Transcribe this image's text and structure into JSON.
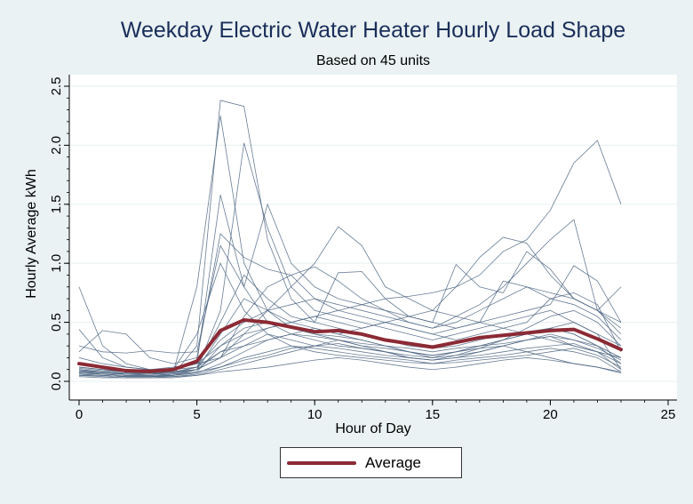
{
  "chart_data": {
    "type": "line",
    "title": "Weekday Electric Water Heater Hourly Load Shape",
    "subtitle": "Based on 45 units",
    "xlabel": "Hour of Day",
    "ylabel": "Hourly Average kWh",
    "xlim": [
      0,
      25
    ],
    "ylim": [
      0,
      2.5
    ],
    "xticks": [
      "0",
      "5",
      "10",
      "15",
      "20",
      "25"
    ],
    "yticks": [
      "0.0",
      "0.5",
      "1.0",
      "1.5",
      "2.0",
      "2.5"
    ],
    "grid": true,
    "legend": "bottom",
    "x": [
      0,
      1,
      2,
      3,
      4,
      5,
      6,
      7,
      8,
      9,
      10,
      11,
      12,
      13,
      14,
      15,
      16,
      17,
      18,
      19,
      20,
      21,
      22,
      23
    ],
    "average": {
      "name": "Average",
      "color": "#8b2a35",
      "values": [
        0.15,
        0.12,
        0.09,
        0.085,
        0.1,
        0.17,
        0.43,
        0.52,
        0.5,
        0.46,
        0.42,
        0.43,
        0.4,
        0.35,
        0.32,
        0.29,
        0.33,
        0.37,
        0.39,
        0.41,
        0.43,
        0.44,
        0.36,
        0.27
      ]
    },
    "unit_color": "#4f6683",
    "units": [
      [
        0.08,
        0.06,
        0.05,
        0.05,
        0.06,
        0.3,
        2.38,
        2.33,
        1.2,
        0.7,
        0.5,
        0.45,
        0.4,
        0.35,
        0.3,
        0.28,
        0.3,
        0.35,
        0.4,
        0.42,
        0.45,
        0.4,
        0.3,
        0.2
      ],
      [
        0.1,
        0.08,
        0.06,
        0.06,
        0.08,
        0.8,
        2.25,
        1.0,
        0.6,
        0.45,
        0.4,
        0.38,
        0.35,
        0.3,
        0.25,
        0.22,
        0.25,
        0.28,
        0.3,
        0.35,
        0.38,
        0.3,
        0.25,
        0.15
      ],
      [
        0.06,
        0.05,
        0.04,
        0.04,
        0.05,
        0.1,
        0.6,
        2.02,
        1.3,
        0.8,
        0.6,
        0.55,
        0.5,
        0.45,
        0.4,
        0.35,
        0.4,
        0.45,
        0.5,
        0.55,
        0.6,
        0.5,
        0.4,
        0.3
      ],
      [
        0.12,
        0.1,
        0.08,
        0.08,
        0.1,
        0.15,
        0.3,
        0.4,
        0.45,
        0.5,
        0.55,
        0.6,
        0.65,
        0.7,
        0.72,
        0.75,
        0.8,
        0.9,
        1.1,
        1.2,
        1.45,
        1.85,
        2.04,
        1.5
      ],
      [
        0.09,
        0.07,
        0.06,
        0.06,
        0.07,
        0.12,
        0.35,
        0.5,
        0.6,
        0.65,
        0.7,
        0.65,
        0.6,
        0.55,
        0.5,
        0.45,
        0.55,
        0.65,
        0.8,
        1.0,
        1.2,
        1.37,
        0.6,
        0.4
      ],
      [
        0.07,
        0.06,
        0.05,
        0.05,
        0.06,
        0.1,
        0.2,
        0.4,
        0.6,
        0.8,
        1.0,
        1.31,
        1.15,
        0.8,
        0.7,
        0.6,
        0.55,
        0.5,
        0.45,
        0.4,
        0.35,
        0.3,
        0.25,
        0.2
      ],
      [
        0.8,
        0.3,
        0.15,
        0.1,
        0.1,
        0.12,
        0.25,
        0.35,
        0.45,
        0.5,
        0.55,
        0.5,
        0.45,
        0.5,
        0.55,
        0.6,
        0.8,
        1.05,
        1.22,
        1.17,
        0.9,
        0.7,
        0.6,
        0.8
      ],
      [
        0.44,
        0.2,
        0.12,
        0.1,
        0.1,
        0.15,
        1.58,
        0.8,
        0.5,
        0.4,
        0.35,
        0.3,
        0.28,
        0.25,
        0.22,
        0.2,
        0.22,
        0.25,
        0.3,
        0.35,
        0.4,
        0.35,
        0.3,
        0.15
      ],
      [
        0.25,
        0.43,
        0.4,
        0.2,
        0.15,
        0.2,
        1.25,
        1.05,
        0.95,
        0.9,
        0.7,
        0.6,
        0.55,
        0.5,
        0.45,
        0.4,
        0.45,
        0.5,
        0.55,
        0.6,
        0.65,
        0.98,
        0.85,
        0.5
      ],
      [
        0.3,
        0.25,
        0.24,
        0.26,
        0.24,
        0.25,
        1.15,
        0.8,
        1.5,
        1.0,
        0.8,
        0.7,
        0.65,
        0.6,
        0.55,
        0.5,
        0.99,
        0.8,
        0.75,
        1.1,
        0.95,
        0.7,
        0.6,
        0.45
      ],
      [
        0.05,
        0.04,
        0.03,
        0.03,
        0.04,
        0.05,
        0.1,
        0.15,
        0.2,
        0.25,
        0.3,
        0.35,
        0.3,
        0.25,
        0.2,
        0.18,
        0.2,
        0.25,
        0.3,
        0.25,
        0.2,
        0.15,
        0.12,
        0.08
      ],
      [
        0.06,
        0.05,
        0.04,
        0.04,
        0.05,
        0.07,
        0.15,
        0.25,
        0.35,
        0.4,
        0.45,
        0.4,
        0.35,
        0.3,
        0.25,
        0.2,
        0.25,
        0.3,
        0.35,
        0.4,
        0.45,
        0.5,
        0.4,
        0.1
      ],
      [
        0.08,
        0.07,
        0.06,
        0.05,
        0.06,
        0.08,
        0.12,
        0.18,
        0.22,
        0.28,
        0.3,
        0.32,
        0.28,
        0.25,
        0.2,
        0.18,
        0.2,
        0.22,
        0.25,
        0.28,
        0.3,
        0.32,
        0.25,
        0.1
      ],
      [
        0.15,
        0.12,
        0.1,
        0.08,
        0.1,
        0.4,
        1.0,
        0.6,
        0.4,
        0.3,
        0.25,
        0.22,
        0.2,
        0.18,
        0.16,
        0.15,
        0.16,
        0.18,
        0.2,
        0.22,
        0.25,
        0.28,
        0.22,
        0.12
      ],
      [
        0.1,
        0.08,
        0.07,
        0.06,
        0.07,
        0.1,
        0.2,
        0.55,
        0.8,
        0.9,
        0.97,
        0.85,
        0.7,
        0.6,
        0.5,
        0.45,
        0.5,
        0.6,
        0.7,
        0.8,
        0.75,
        0.7,
        0.6,
        0.5
      ],
      [
        0.04,
        0.03,
        0.03,
        0.03,
        0.03,
        0.05,
        0.08,
        0.1,
        0.12,
        0.15,
        0.18,
        0.2,
        0.18,
        0.15,
        0.12,
        0.1,
        0.12,
        0.15,
        0.18,
        0.2,
        0.18,
        0.15,
        0.12,
        0.07
      ],
      [
        0.12,
        0.1,
        0.08,
        0.07,
        0.08,
        0.12,
        0.5,
        0.9,
        0.7,
        0.55,
        0.5,
        0.92,
        0.93,
        0.7,
        0.55,
        0.5,
        0.45,
        0.5,
        0.85,
        0.8,
        0.7,
        0.65,
        0.55,
        0.35
      ],
      [
        0.09,
        0.08,
        0.07,
        0.07,
        0.08,
        0.1,
        0.25,
        0.3,
        0.4,
        0.35,
        0.3,
        0.28,
        0.25,
        0.22,
        0.2,
        0.18,
        0.22,
        0.28,
        0.35,
        0.45,
        0.55,
        0.6,
        0.5,
        0.3
      ],
      [
        0.07,
        0.06,
        0.05,
        0.05,
        0.05,
        0.08,
        0.3,
        0.45,
        0.5,
        0.45,
        0.4,
        0.35,
        0.3,
        0.28,
        0.25,
        0.22,
        0.25,
        0.3,
        0.35,
        0.4,
        0.45,
        0.4,
        0.3,
        0.2
      ],
      [
        0.2,
        0.15,
        0.12,
        0.1,
        0.12,
        0.15,
        0.2,
        0.3,
        0.35,
        0.4,
        0.38,
        0.35,
        0.32,
        0.3,
        0.28,
        0.25,
        0.28,
        0.3,
        0.32,
        0.35,
        0.38,
        0.35,
        0.28,
        0.18
      ],
      [
        0.05,
        0.05,
        0.04,
        0.04,
        0.04,
        0.06,
        0.12,
        0.2,
        0.25,
        0.3,
        0.28,
        0.25,
        0.22,
        0.2,
        0.18,
        0.15,
        0.18,
        0.2,
        0.22,
        0.25,
        0.28,
        0.25,
        0.2,
        0.08
      ],
      [
        0.11,
        0.09,
        0.08,
        0.07,
        0.08,
        0.1,
        0.4,
        0.7,
        0.6,
        0.5,
        0.45,
        0.4,
        0.45,
        0.5,
        0.45,
        0.4,
        0.35,
        0.4,
        0.45,
        0.5,
        0.7,
        0.75,
        0.65,
        0.25
      ]
    ]
  }
}
